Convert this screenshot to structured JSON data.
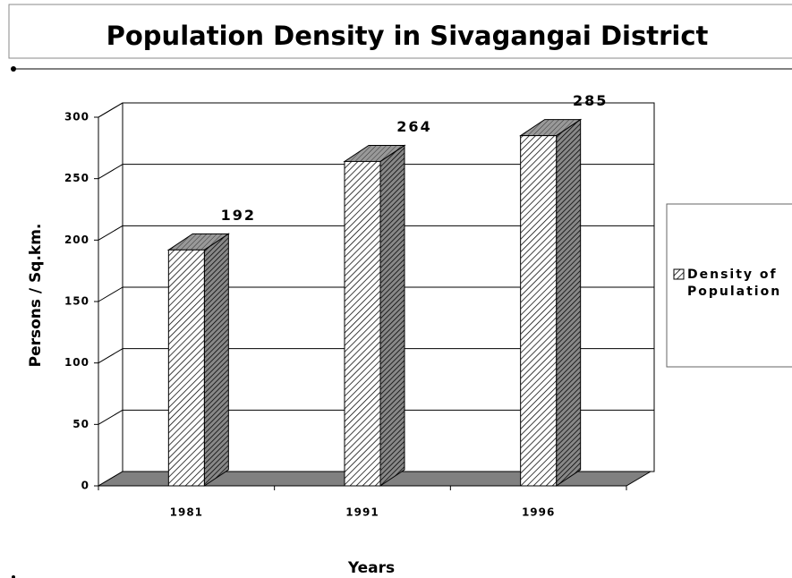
{
  "chart_data": {
    "type": "bar",
    "title": "Population Density in Sivagangai District",
    "x_label": "Years",
    "y_label": "Persons / Sq.km.",
    "categories": [
      "1981",
      "1991",
      "1996"
    ],
    "series": [
      {
        "name": "Density of Population",
        "color": "#000000",
        "values": [
          192,
          264,
          285
        ]
      }
    ],
    "ylim": [
      0,
      300
    ],
    "yticks": [
      0,
      50,
      100,
      150,
      200,
      250,
      300
    ],
    "grid": true,
    "legend": "right"
  }
}
